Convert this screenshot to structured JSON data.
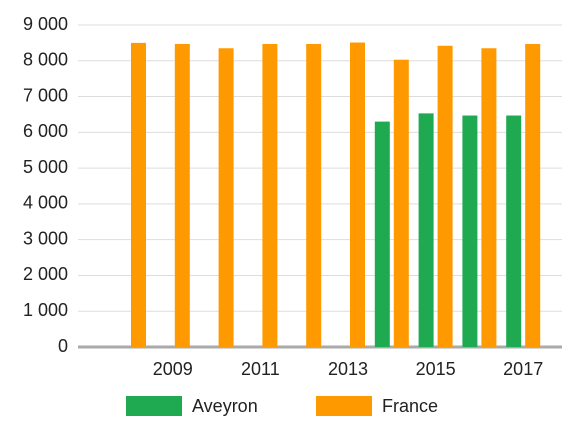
{
  "chart_data": {
    "type": "bar",
    "categories": [
      null,
      "2009",
      null,
      "2011",
      null,
      "2013",
      null,
      "2015",
      null,
      "2017"
    ],
    "series": [
      {
        "name": "Aveyron",
        "color": "#1faa52",
        "values": [
          null,
          null,
          null,
          null,
          null,
          null,
          6300,
          6530,
          6470,
          6470
        ]
      },
      {
        "name": "France",
        "color": "#ff9900",
        "values": [
          8500,
          8470,
          8350,
          8470,
          8470,
          8510,
          8030,
          8420,
          8350,
          8470
        ]
      }
    ],
    "ylim": [
      0,
      9000
    ],
    "yticks": [
      0,
      {
        "value": 1000,
        "label": "1 000"
      },
      {
        "value": 2000,
        "label": "2 000"
      },
      {
        "value": 3000,
        "label": "3 000"
      },
      {
        "value": 4000,
        "label": "4 000"
      },
      {
        "value": 5000,
        "label": "5 000"
      },
      {
        "value": 6000,
        "label": "6 000"
      },
      {
        "value": 7000,
        "label": "7 000"
      },
      {
        "value": 8000,
        "label": "8 000"
      },
      {
        "value": 9000,
        "label": "9 000"
      }
    ],
    "grid": true,
    "legend": "bottom"
  }
}
